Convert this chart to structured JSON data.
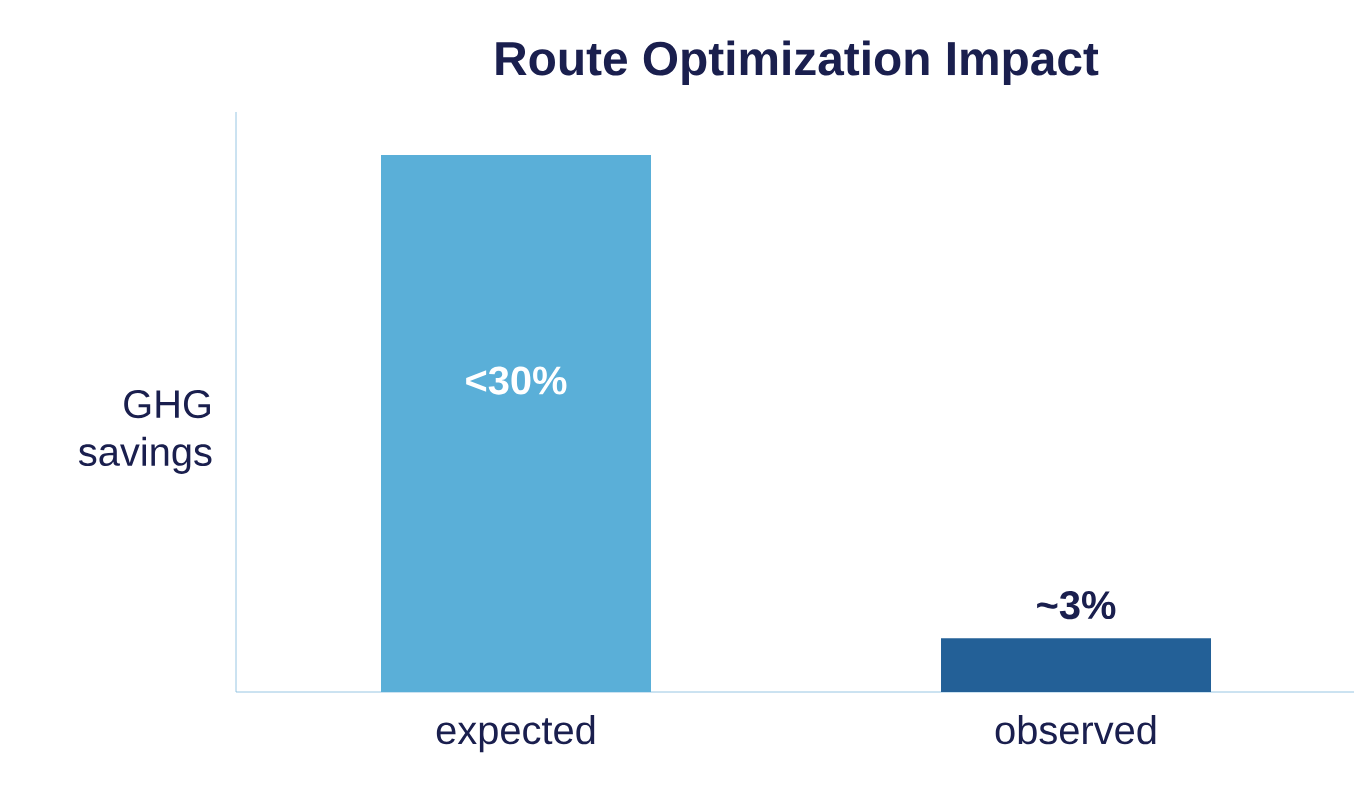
{
  "chart_data": {
    "type": "bar",
    "title": "Route Optimization Impact",
    "ylabel": "GHG savings",
    "categories": [
      "expected",
      "observed"
    ],
    "values": [
      30,
      3
    ],
    "colors": [
      "#5aafd8",
      "#236097"
    ],
    "value_labels": [
      "<30%",
      "~3%"
    ]
  }
}
